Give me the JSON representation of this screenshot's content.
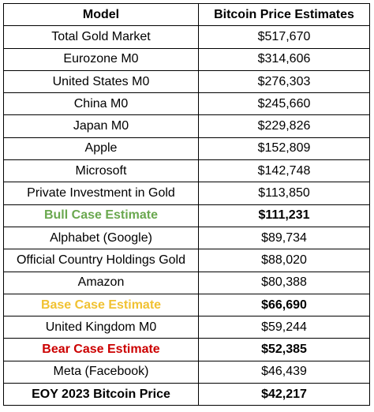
{
  "table": {
    "header": [
      "Model",
      "Bitcoin Price Estimates"
    ],
    "rows": [
      [
        "Total Gold Market",
        "$517,670"
      ],
      [
        "Eurozone M0",
        "$314,606"
      ],
      [
        "United States M0",
        "$276,303"
      ],
      [
        "China M0",
        "$245,660"
      ],
      [
        "Japan M0",
        "$229,826"
      ],
      [
        "Apple",
        "$152,809"
      ],
      [
        "Microsoft",
        "$142,748"
      ],
      [
        "Private Investment in Gold",
        "$113,850"
      ],
      [
        "Bull Case Estimate",
        "$111,231"
      ],
      [
        "Alphabet (Google)",
        "$89,734"
      ],
      [
        "Official Country Holdings Gold",
        "$88,020"
      ],
      [
        "Amazon",
        "$80,388"
      ],
      [
        "Base Case Estimate",
        "$66,690"
      ],
      [
        "United Kingdom M0",
        "$59,244"
      ],
      [
        "Bear Case Estimate",
        "$52,385"
      ],
      [
        "Meta (Facebook)",
        "$46,439"
      ],
      [
        "EOY 2023 Bitcoin Price",
        "$42,217"
      ]
    ]
  }
}
